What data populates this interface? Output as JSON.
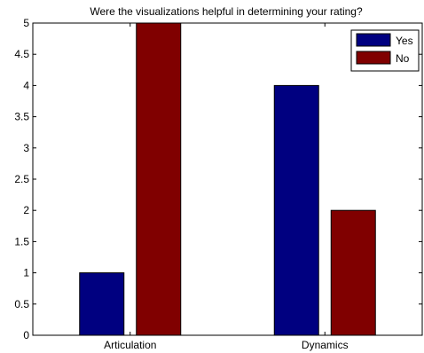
{
  "chart_data": {
    "type": "bar",
    "title": "Were the visualizations helpful in determining your rating?",
    "categories": [
      "Articulation",
      "Dynamics"
    ],
    "series": [
      {
        "name": "Yes",
        "values": [
          1,
          4
        ],
        "color": "#000080"
      },
      {
        "name": "No",
        "values": [
          5,
          2
        ],
        "color": "#800000"
      }
    ],
    "ylim": [
      0,
      5
    ],
    "yticks": [
      "0",
      "0.5",
      "1",
      "1.5",
      "2",
      "2.5",
      "3",
      "3.5",
      "4",
      "4.5",
      "5"
    ],
    "xlabel": "",
    "ylabel": "",
    "grid": false,
    "legend_position": "top-right"
  }
}
